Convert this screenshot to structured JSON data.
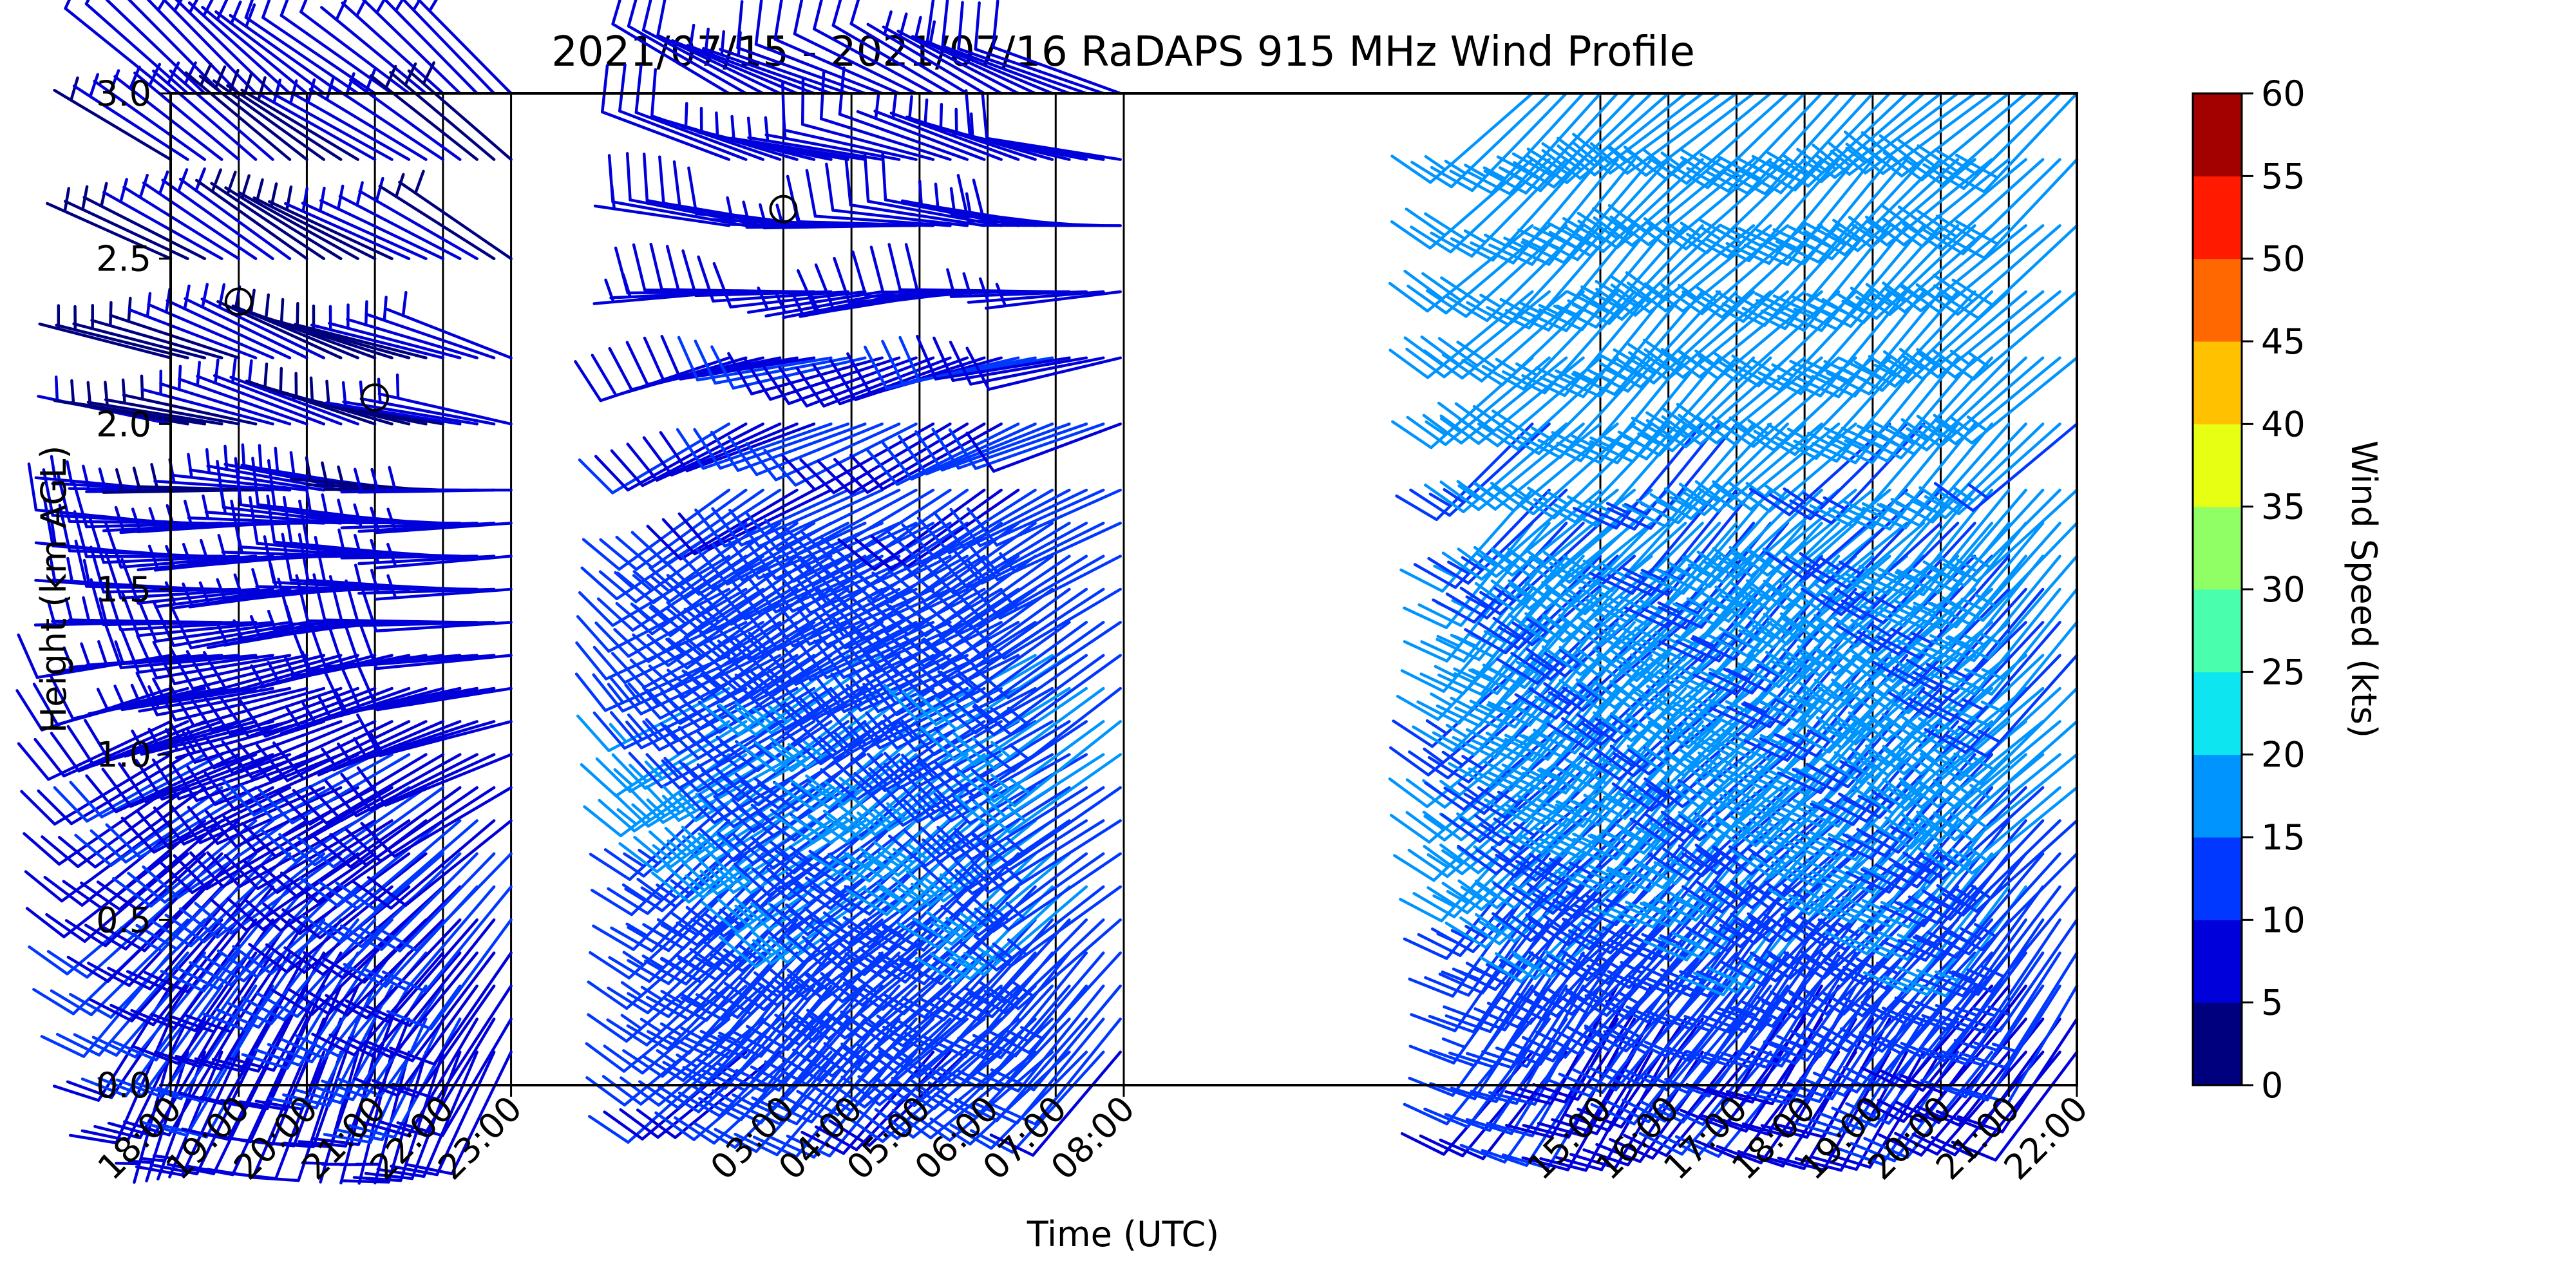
{
  "chart_data": {
    "type": "wind-barb",
    "title": "2021/07/15 - 2021/07/16 RaDAPS 915 MHz Wind Profile",
    "xlabel": "Time (UTC)",
    "ylabel": "Height (km AGL)",
    "x_ticks": [
      "18:00",
      "19:00",
      "20:00",
      "21:00",
      "22:00",
      "23:00",
      "03:00",
      "04:00",
      "05:00",
      "06:00",
      "07:00",
      "08:00",
      "15:00",
      "16:00",
      "17:00",
      "18:00",
      "19:00",
      "20:00",
      "21:00",
      "22:00"
    ],
    "x_tick_hours": [
      18,
      19,
      20,
      21,
      22,
      23,
      27,
      28,
      29,
      30,
      31,
      32,
      39,
      40,
      41,
      42,
      43,
      44,
      45,
      46
    ],
    "xlim_hours": [
      18,
      46
    ],
    "y_ticks": [
      "0.0",
      "0.5",
      "1.0",
      "1.5",
      "2.0",
      "2.5",
      "3.0"
    ],
    "ylim": [
      0,
      3
    ],
    "grid": "vertical lines at each hour",
    "colorbar": {
      "label": "Wind Speed (kts)",
      "ticks": [
        "0",
        "5",
        "10",
        "15",
        "20",
        "25",
        "30",
        "35",
        "40",
        "45",
        "50",
        "55",
        "60"
      ],
      "range": [
        0,
        60
      ],
      "colors": [
        "#00007f",
        "#0000db",
        "#0038ff",
        "#0094ff",
        "#0de6f0",
        "#49ffad",
        "#90ff66",
        "#e6ff13",
        "#ffc100",
        "#ff6800",
        "#ff1a00",
        "#a30000"
      ]
    },
    "calm_markers": [
      {
        "time_h": 19.0,
        "height_km": 2.37
      },
      {
        "time_h": 21.0,
        "height_km": 2.08
      },
      {
        "time_h": 27.0,
        "height_km": 2.65
      }
    ],
    "profile_segments": [
      {
        "start_h": 18.0,
        "end_h": 23.0,
        "heights_km": [
          0.1,
          0.2,
          0.3,
          0.4,
          0.5,
          0.6,
          0.7,
          0.8,
          0.9,
          1.0,
          1.1,
          1.2,
          1.3,
          1.4,
          1.5,
          1.6,
          1.7,
          1.8,
          2.0,
          2.2,
          2.5,
          2.8,
          3.0
        ],
        "dir_deg": [
          200,
          205,
          210,
          215,
          220,
          225,
          230,
          235,
          240,
          245,
          250,
          255,
          260,
          265,
          268,
          270,
          272,
          275,
          285,
          290,
          300,
          305,
          310
        ],
        "speed_kts": [
          8,
          9,
          10,
          10,
          10,
          10,
          10,
          9,
          9,
          9,
          8,
          8,
          8,
          8,
          7,
          7,
          7,
          6,
          5,
          5,
          5,
          5,
          7
        ]
      },
      {
        "start_h": 26.2,
        "end_h": 32.0,
        "heights_km": [
          0.1,
          0.2,
          0.3,
          0.4,
          0.5,
          0.6,
          0.7,
          0.8,
          0.9,
          1.0,
          1.1,
          1.2,
          1.3,
          1.4,
          1.5,
          1.6,
          1.7,
          1.8,
          2.0,
          2.2,
          2.4,
          2.6,
          2.8,
          3.0
        ],
        "dir_deg": [
          225,
          225,
          225,
          225,
          228,
          230,
          230,
          232,
          232,
          235,
          235,
          238,
          240,
          240,
          240,
          240,
          240,
          240,
          245,
          255,
          265,
          275,
          285,
          295
        ],
        "speed_kts": [
          11,
          12,
          12,
          13,
          13,
          14,
          14,
          15,
          15,
          15,
          14,
          14,
          14,
          13,
          13,
          12,
          12,
          11,
          10,
          9,
          8,
          8,
          7,
          8
        ]
      },
      {
        "start_h": 38.0,
        "end_h": 46.0,
        "heights_km": [
          0.1,
          0.2,
          0.3,
          0.4,
          0.5,
          0.6,
          0.7,
          0.8,
          0.9,
          1.0,
          1.1,
          1.2,
          1.3,
          1.4,
          1.5,
          1.6,
          1.7,
          1.8,
          2.0,
          2.2,
          2.4,
          2.6,
          2.8,
          3.0
        ],
        "dir_deg": [
          215,
          215,
          215,
          218,
          220,
          222,
          224,
          224,
          225,
          225,
          225,
          225,
          225,
          225,
          225,
          225,
          225,
          225,
          225,
          225,
          225,
          225,
          225,
          228
        ],
        "speed_kts": [
          9,
          10,
          11,
          12,
          13,
          14,
          14,
          15,
          15,
          16,
          16,
          16,
          16,
          16,
          16,
          16,
          16,
          16,
          16,
          17,
          17,
          17,
          18,
          18
        ]
      }
    ]
  }
}
